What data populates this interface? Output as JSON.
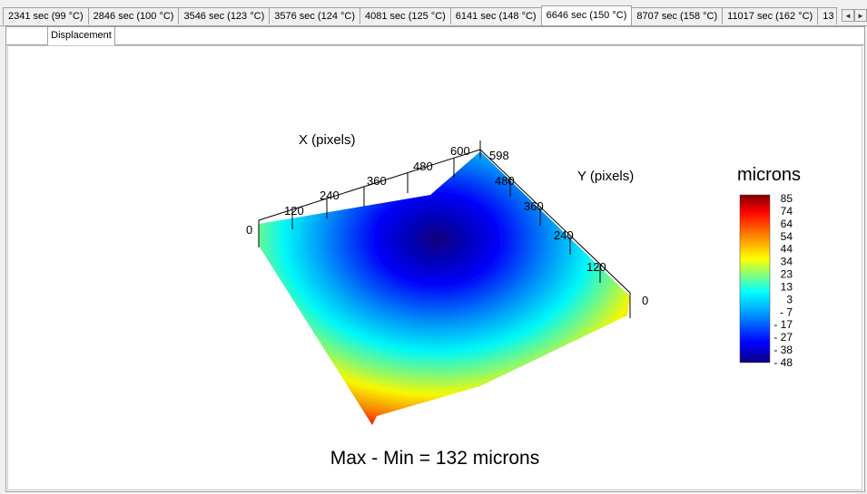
{
  "tabs": [
    {
      "label": "2341 sec  (99 °C)",
      "active": false
    },
    {
      "label": "2846 sec  (100 °C)",
      "active": false
    },
    {
      "label": "3546 sec  (123 °C)",
      "active": false
    },
    {
      "label": "3576 sec  (124 °C)",
      "active": false
    },
    {
      "label": "4081 sec  (125 °C)",
      "active": false
    },
    {
      "label": "6141 sec  (148 °C)",
      "active": false
    },
    {
      "label": "6646 sec  (150 °C)",
      "active": true
    },
    {
      "label": "8707 sec  (158 °C)",
      "active": false
    },
    {
      "label": "11017 sec  (162 °C)",
      "active": false
    },
    {
      "label": "13",
      "active": false
    }
  ],
  "tab_scroll": {
    "left": "◄",
    "right": "►"
  },
  "subtab": {
    "label": "Displacement"
  },
  "plot": {
    "x_axis": {
      "title": "X (pixels)",
      "ticks": [
        "0",
        "120",
        "240",
        "360",
        "480",
        "600"
      ]
    },
    "y_axis": {
      "title": "Y (pixels)",
      "ticks": [
        "0",
        "120",
        "240",
        "360",
        "480",
        "598"
      ]
    },
    "colorbar": {
      "title": "microns",
      "ticks": [
        "85",
        "74",
        "64",
        "54",
        "44",
        "34",
        "23",
        "13",
        "3",
        "- 7",
        "- 17",
        "- 27",
        "- 38",
        "- 48"
      ],
      "colors": [
        "#0a0080",
        "#0000ff",
        "#00a0ff",
        "#00ffff",
        "#80ff80",
        "#ffff00",
        "#ff8000",
        "#ff0000",
        "#800000"
      ]
    },
    "summary": "Max - Min = 132 microns"
  }
}
